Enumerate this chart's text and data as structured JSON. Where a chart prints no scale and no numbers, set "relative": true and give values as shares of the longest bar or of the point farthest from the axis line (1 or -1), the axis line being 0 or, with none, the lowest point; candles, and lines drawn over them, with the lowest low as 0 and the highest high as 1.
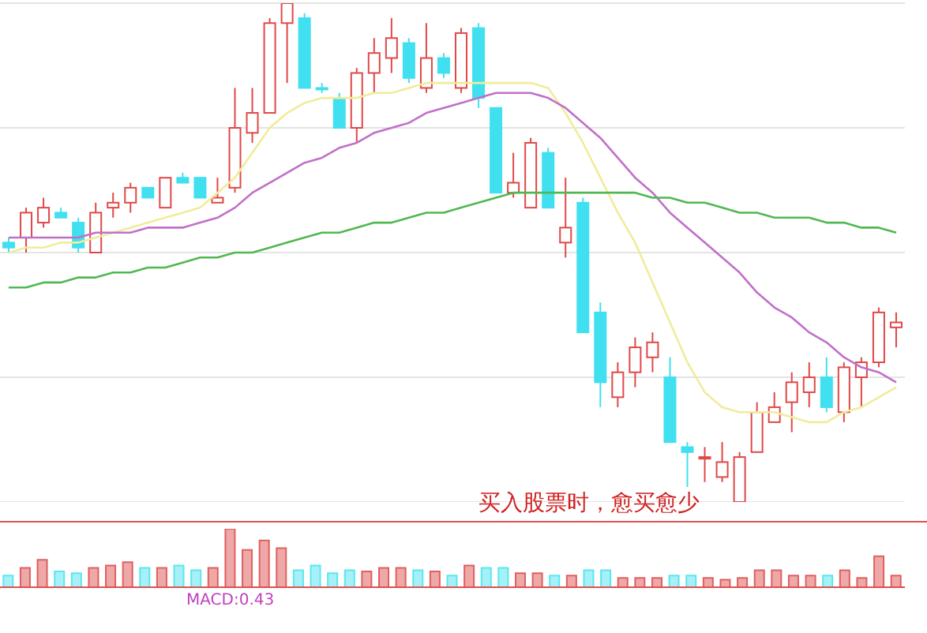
{
  "chart_data": [
    {
      "type": "candlestick",
      "relative": true,
      "grid": "y",
      "categories": [
        null,
        null,
        null,
        null,
        null,
        null,
        null,
        null,
        null,
        null,
        null,
        null,
        null,
        null,
        null,
        null,
        null,
        null,
        null,
        null,
        null,
        null,
        null,
        null,
        null,
        null,
        null,
        null,
        null,
        null,
        null,
        null,
        null,
        null,
        null,
        null,
        null,
        null,
        null,
        null,
        null,
        null,
        null,
        null,
        null,
        null,
        null,
        null,
        null,
        null,
        null,
        null
      ],
      "ohlc": [
        [
          0.52,
          0.53,
          0.5,
          0.51
        ],
        [
          0.53,
          0.59,
          0.5,
          0.58
        ],
        [
          0.56,
          0.61,
          0.55,
          0.59
        ],
        [
          0.58,
          0.59,
          0.57,
          0.57
        ],
        [
          0.56,
          0.57,
          0.5,
          0.51
        ],
        [
          0.5,
          0.6,
          0.5,
          0.58
        ],
        [
          0.59,
          0.62,
          0.57,
          0.6
        ],
        [
          0.6,
          0.64,
          0.58,
          0.63
        ],
        [
          0.63,
          0.63,
          0.61,
          0.61
        ],
        [
          0.59,
          0.65,
          0.59,
          0.65
        ],
        [
          0.65,
          0.66,
          0.64,
          0.64
        ],
        [
          0.65,
          0.65,
          0.61,
          0.61
        ],
        [
          0.6,
          0.65,
          0.6,
          0.61
        ],
        [
          0.63,
          0.83,
          0.62,
          0.75
        ],
        [
          0.74,
          0.83,
          0.72,
          0.78
        ],
        [
          0.78,
          0.97,
          0.78,
          0.96
        ],
        [
          0.96,
          1,
          0.84,
          1
        ],
        [
          0.97,
          0.98,
          0.83,
          0.83
        ],
        [
          0.83,
          0.84,
          0.82,
          0.83
        ],
        [
          0.81,
          0.82,
          0.75,
          0.75
        ],
        [
          0.75,
          0.87,
          0.72,
          0.86
        ],
        [
          0.86,
          0.93,
          0.82,
          0.9
        ],
        [
          0.89,
          0.97,
          0.86,
          0.93
        ],
        [
          0.92,
          0.93,
          0.84,
          0.85
        ],
        [
          0.83,
          0.96,
          0.82,
          0.89
        ],
        [
          0.89,
          0.9,
          0.85,
          0.86
        ],
        [
          0.83,
          0.95,
          0.82,
          0.94
        ],
        [
          0.95,
          0.96,
          0.79,
          0.81
        ],
        [
          0.79,
          0.79,
          0.62,
          0.62
        ],
        [
          0.62,
          0.7,
          0.61,
          0.64
        ],
        [
          0.59,
          0.73,
          0.59,
          0.72
        ],
        [
          0.7,
          0.71,
          0.59,
          0.59
        ],
        [
          0.52,
          0.65,
          0.49,
          0.55
        ],
        [
          0.6,
          0.61,
          0.34,
          0.34
        ],
        [
          0.38,
          0.4,
          0.19,
          0.24
        ],
        [
          0.21,
          0.28,
          0.19,
          0.26
        ],
        [
          0.26,
          0.33,
          0.23,
          0.31
        ],
        [
          0.29,
          0.34,
          0.26,
          0.32
        ],
        [
          0.25,
          0.29,
          0.12,
          0.12
        ],
        [
          0.11,
          0.12,
          0.03,
          0.1
        ],
        [
          0.09,
          0.11,
          0.04,
          0.09
        ],
        [
          0.05,
          0.12,
          0.04,
          0.08
        ],
        [
          0,
          0.1,
          0,
          0.09
        ],
        [
          0.1,
          0.2,
          0.1,
          0.18
        ],
        [
          0.16,
          0.22,
          0.16,
          0.19
        ],
        [
          0.2,
          0.26,
          0.14,
          0.24
        ],
        [
          0.22,
          0.28,
          0.19,
          0.25
        ],
        [
          0.25,
          0.29,
          0.18,
          0.19
        ],
        [
          0.18,
          0.28,
          0.16,
          0.27
        ],
        [
          0.25,
          0.29,
          0.19,
          0.28
        ],
        [
          0.28,
          0.39,
          0.27,
          0.38
        ],
        [
          0.35,
          0.38,
          0.31,
          0.36
        ]
      ],
      "colors": [
        "#40e0f0",
        "#e04848",
        "#e04848",
        "#40e0f0",
        "#40e0f0",
        "#e04848",
        "#e04848",
        "#e04848",
        "#40e0f0",
        "#e04848",
        "#40e0f0",
        "#40e0f0",
        "#e04848",
        "#e04848",
        "#e04848",
        "#e04848",
        "#e04848",
        "#40e0f0",
        "#40e0f0",
        "#40e0f0",
        "#e04848",
        "#e04848",
        "#e04848",
        "#40e0f0",
        "#e04848",
        "#40e0f0",
        "#e04848",
        "#40e0f0",
        "#40e0f0",
        "#e04848",
        "#e04848",
        "#40e0f0",
        "#e04848",
        "#40e0f0",
        "#40e0f0",
        "#e04848",
        "#e04848",
        "#e04848",
        "#40e0f0",
        "#40e0f0",
        "#e04848",
        "#e04848",
        "#e04848",
        "#e04848",
        "#e04848",
        "#e04848",
        "#e04848",
        "#40e0f0",
        "#e04848",
        "#e04848",
        "#e04848",
        "#e04848"
      ],
      "series": [
        {
          "type": "line",
          "color": "#f0ec9a",
          "values": [
            0.5,
            0.51,
            0.51,
            0.52,
            0.52,
            0.53,
            0.54,
            0.55,
            0.56,
            0.57,
            0.58,
            0.59,
            0.62,
            0.65,
            0.7,
            0.75,
            0.78,
            0.8,
            0.81,
            0.81,
            0.81,
            0.82,
            0.82,
            0.83,
            0.84,
            0.84,
            0.84,
            0.84,
            0.84,
            0.84,
            0.84,
            0.83,
            0.78,
            0.72,
            0.65,
            0.58,
            0.52,
            0.44,
            0.36,
            0.28,
            0.22,
            0.19,
            0.18,
            0.18,
            0.18,
            0.17,
            0.16,
            0.16,
            0.18,
            0.19,
            0.21,
            0.23
          ]
        },
        {
          "type": "line",
          "color": "#c070c8",
          "values": [
            0.53,
            0.53,
            0.53,
            0.53,
            0.53,
            0.54,
            0.54,
            0.54,
            0.55,
            0.55,
            0.55,
            0.56,
            0.57,
            0.59,
            0.62,
            0.64,
            0.66,
            0.68,
            0.69,
            0.71,
            0.72,
            0.74,
            0.75,
            0.76,
            0.78,
            0.79,
            0.8,
            0.81,
            0.82,
            0.82,
            0.82,
            0.81,
            0.79,
            0.76,
            0.73,
            0.69,
            0.65,
            0.62,
            0.58,
            0.55,
            0.52,
            0.49,
            0.46,
            0.42,
            0.39,
            0.37,
            0.34,
            0.32,
            0.29,
            0.27,
            0.26,
            0.24
          ]
        },
        {
          "type": "line",
          "color": "#50b850",
          "values": [
            0.43,
            0.43,
            0.44,
            0.44,
            0.45,
            0.45,
            0.46,
            0.46,
            0.47,
            0.47,
            0.48,
            0.49,
            0.49,
            0.5,
            0.5,
            0.51,
            0.52,
            0.53,
            0.54,
            0.54,
            0.55,
            0.56,
            0.56,
            0.57,
            0.58,
            0.58,
            0.59,
            0.6,
            0.61,
            0.62,
            0.62,
            0.62,
            0.62,
            0.62,
            0.62,
            0.62,
            0.62,
            0.61,
            0.61,
            0.6,
            0.6,
            0.59,
            0.58,
            0.58,
            0.57,
            0.57,
            0.57,
            0.56,
            0.56,
            0.55,
            0.55,
            0.54
          ]
        }
      ],
      "annotations": [
        "买入股票时，愈买愈少"
      ]
    },
    {
      "type": "bar",
      "relative": true,
      "categories": [
        null,
        null,
        null,
        null,
        null,
        null,
        null,
        null,
        null,
        null,
        null,
        null,
        null,
        null,
        null,
        null,
        null,
        null,
        null,
        null,
        null,
        null,
        null,
        null,
        null,
        null,
        null,
        null,
        null,
        null,
        null,
        null,
        null,
        null,
        null,
        null,
        null,
        null,
        null,
        null,
        null,
        null,
        null,
        null,
        null,
        null,
        null,
        null,
        null,
        null,
        null,
        null,
        null
      ],
      "values": [
        0.2,
        0.33,
        0.47,
        0.27,
        0.24,
        0.33,
        0.37,
        0.43,
        0.33,
        0.33,
        0.37,
        0.29,
        0.33,
        1,
        0.64,
        0.8,
        0.67,
        0.29,
        0.37,
        0.24,
        0.29,
        0.27,
        0.33,
        0.33,
        0.29,
        0.27,
        0.2,
        0.37,
        0.33,
        0.33,
        0.24,
        0.24,
        0.2,
        0.2,
        0.29,
        0.29,
        0.16,
        0.16,
        0.16,
        0.2,
        0.2,
        0.16,
        0.13,
        0.16,
        0.29,
        0.29,
        0.2,
        0.2,
        0.2,
        0.29,
        0.16,
        0.53,
        0.2
      ],
      "colors": [
        "#5ce6f0",
        "#e06060",
        "#e06060",
        "#5ce6f0",
        "#5ce6f0",
        "#e06060",
        "#e06060",
        "#e06060",
        "#5ce6f0",
        "#e06060",
        "#5ce6f0",
        "#5ce6f0",
        "#e06060",
        "#e06060",
        "#e06060",
        "#e06060",
        "#e06060",
        "#5ce6f0",
        "#5ce6f0",
        "#5ce6f0",
        "#5ce6f0",
        "#e06060",
        "#e06060",
        "#e06060",
        "#5ce6f0",
        "#e06060",
        "#5ce6f0",
        "#e06060",
        "#5ce6f0",
        "#5ce6f0",
        "#e06060",
        "#e06060",
        "#5ce6f0",
        "#e06060",
        "#5ce6f0",
        "#5ce6f0",
        "#e06060",
        "#e06060",
        "#e06060",
        "#5ce6f0",
        "#5ce6f0",
        "#e06060",
        "#e06060",
        "#e06060",
        "#e06060",
        "#e06060",
        "#e06060",
        "#e06060",
        "#5ce6f0",
        "#e06060",
        "#e06060",
        "#e06060",
        "#e06060"
      ],
      "annotations": [
        "MACD:0.43"
      ]
    }
  ]
}
